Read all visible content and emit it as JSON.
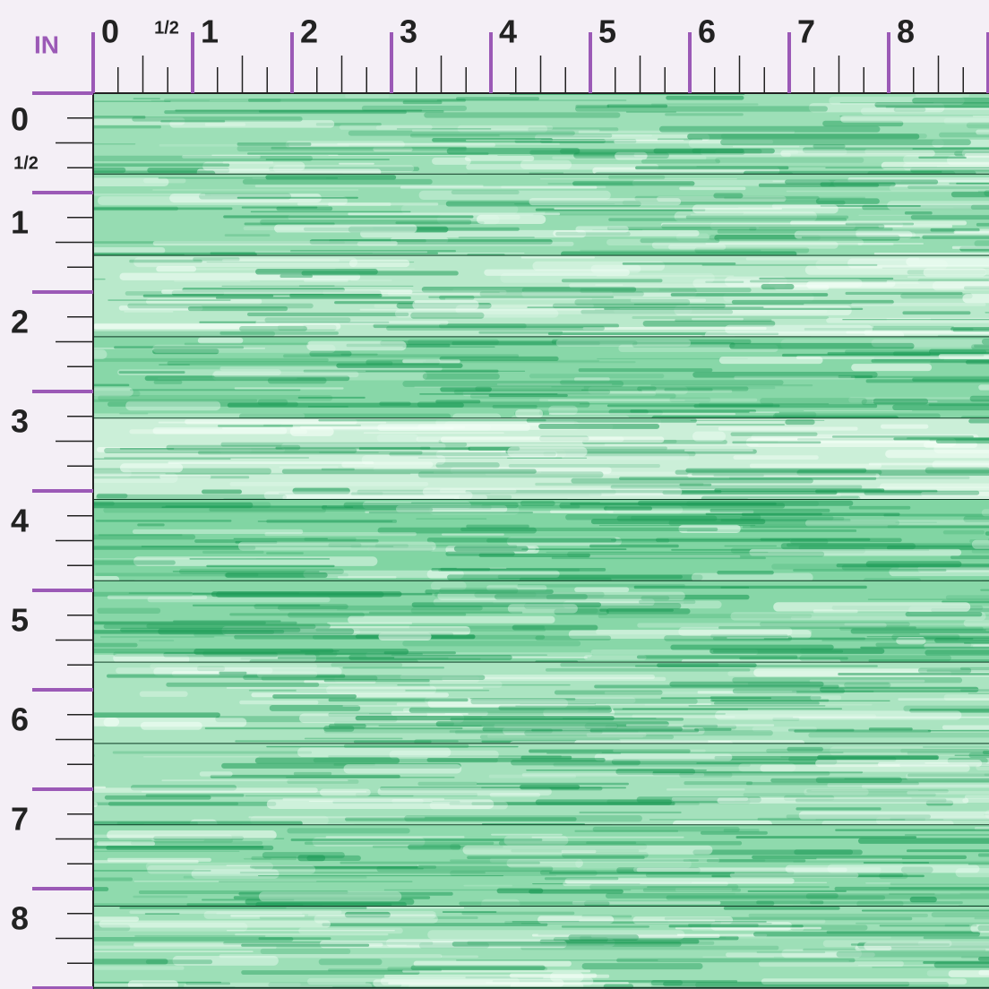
{
  "unit": "IN",
  "top_ruler": {
    "labels": [
      "0",
      "1/2",
      "1",
      "2",
      "3",
      "4",
      "5",
      "6",
      "7",
      "8"
    ]
  },
  "left_ruler": {
    "labels": [
      "0",
      "1/2",
      "1",
      "2",
      "3",
      "4",
      "5",
      "6",
      "7",
      "8"
    ]
  }
}
